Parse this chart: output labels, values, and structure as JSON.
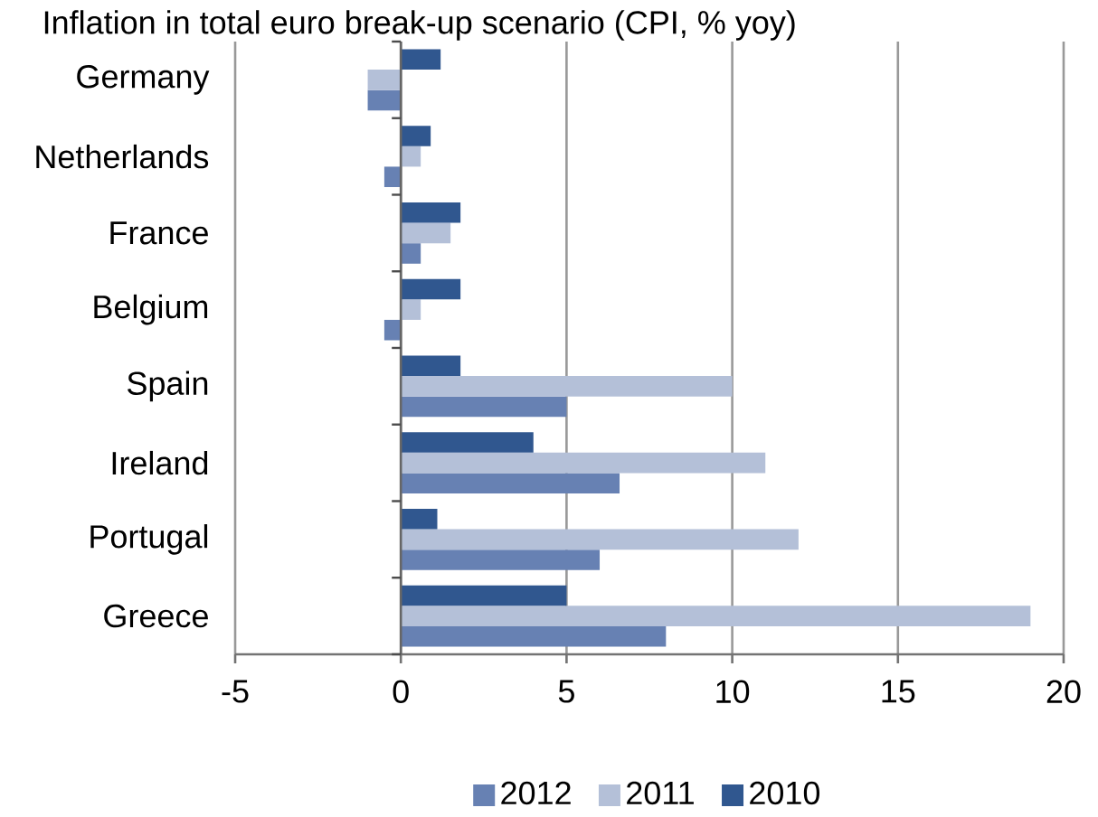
{
  "chart_data": {
    "type": "bar",
    "orientation": "horizontal",
    "title": "Inflation in total euro break-up scenario (CPI, % yoy)",
    "categories": [
      "Germany",
      "Netherlands",
      "France",
      "Belgium",
      "Spain",
      "Ireland",
      "Portugal",
      "Greece"
    ],
    "series": [
      {
        "name": "2012",
        "color": "#6781b3",
        "values": [
          -1.0,
          -0.5,
          0.6,
          -0.5,
          5.0,
          6.6,
          6.0,
          8.0
        ]
      },
      {
        "name": "2011",
        "color": "#b4c0d8",
        "values": [
          -1.0,
          0.6,
          1.5,
          0.6,
          10.0,
          11.0,
          12.0,
          19.0
        ]
      },
      {
        "name": "2010",
        "color": "#30578f",
        "values": [
          1.2,
          0.9,
          1.8,
          1.8,
          1.8,
          4.0,
          1.1,
          5.0
        ]
      }
    ],
    "xlim": [
      -5,
      20
    ],
    "xticks": [
      -5,
      0,
      5,
      10,
      15,
      20
    ],
    "grid": "x",
    "legend": "bottom"
  }
}
